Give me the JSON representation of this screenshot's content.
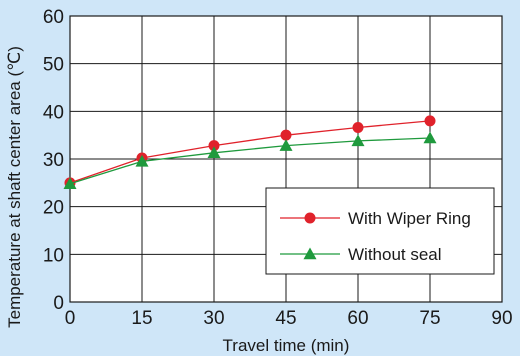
{
  "colors": {
    "background": "#cfe6f8",
    "plot_background": "#ffffff",
    "grid": "#1a1a1a",
    "series_with_wiper": "#e0222b",
    "series_without_seal": "#1f9a3d"
  },
  "chart_data": {
    "type": "line",
    "title": "",
    "xlabel": "Travel time (min)",
    "ylabel": "Temperature at shaft center area (℃)",
    "xlim": [
      0,
      90
    ],
    "ylim": [
      0,
      60
    ],
    "x_ticks": [
      "0",
      "15",
      "30",
      "45",
      "60",
      "75",
      "90"
    ],
    "y_ticks": [
      "0",
      "10",
      "20",
      "30",
      "40",
      "50",
      "60"
    ],
    "x": [
      0,
      15,
      30,
      45,
      60,
      75
    ],
    "series": [
      {
        "name": "With Wiper Ring",
        "marker": "circle",
        "values": [
          25,
          30.2,
          32.8,
          35.0,
          36.6,
          38.0
        ]
      },
      {
        "name": "Without seal",
        "marker": "triangle",
        "values": [
          24.8,
          29.5,
          31.3,
          32.8,
          33.8,
          34.4
        ]
      }
    ],
    "grid": true,
    "legend_position": "lower-right"
  }
}
